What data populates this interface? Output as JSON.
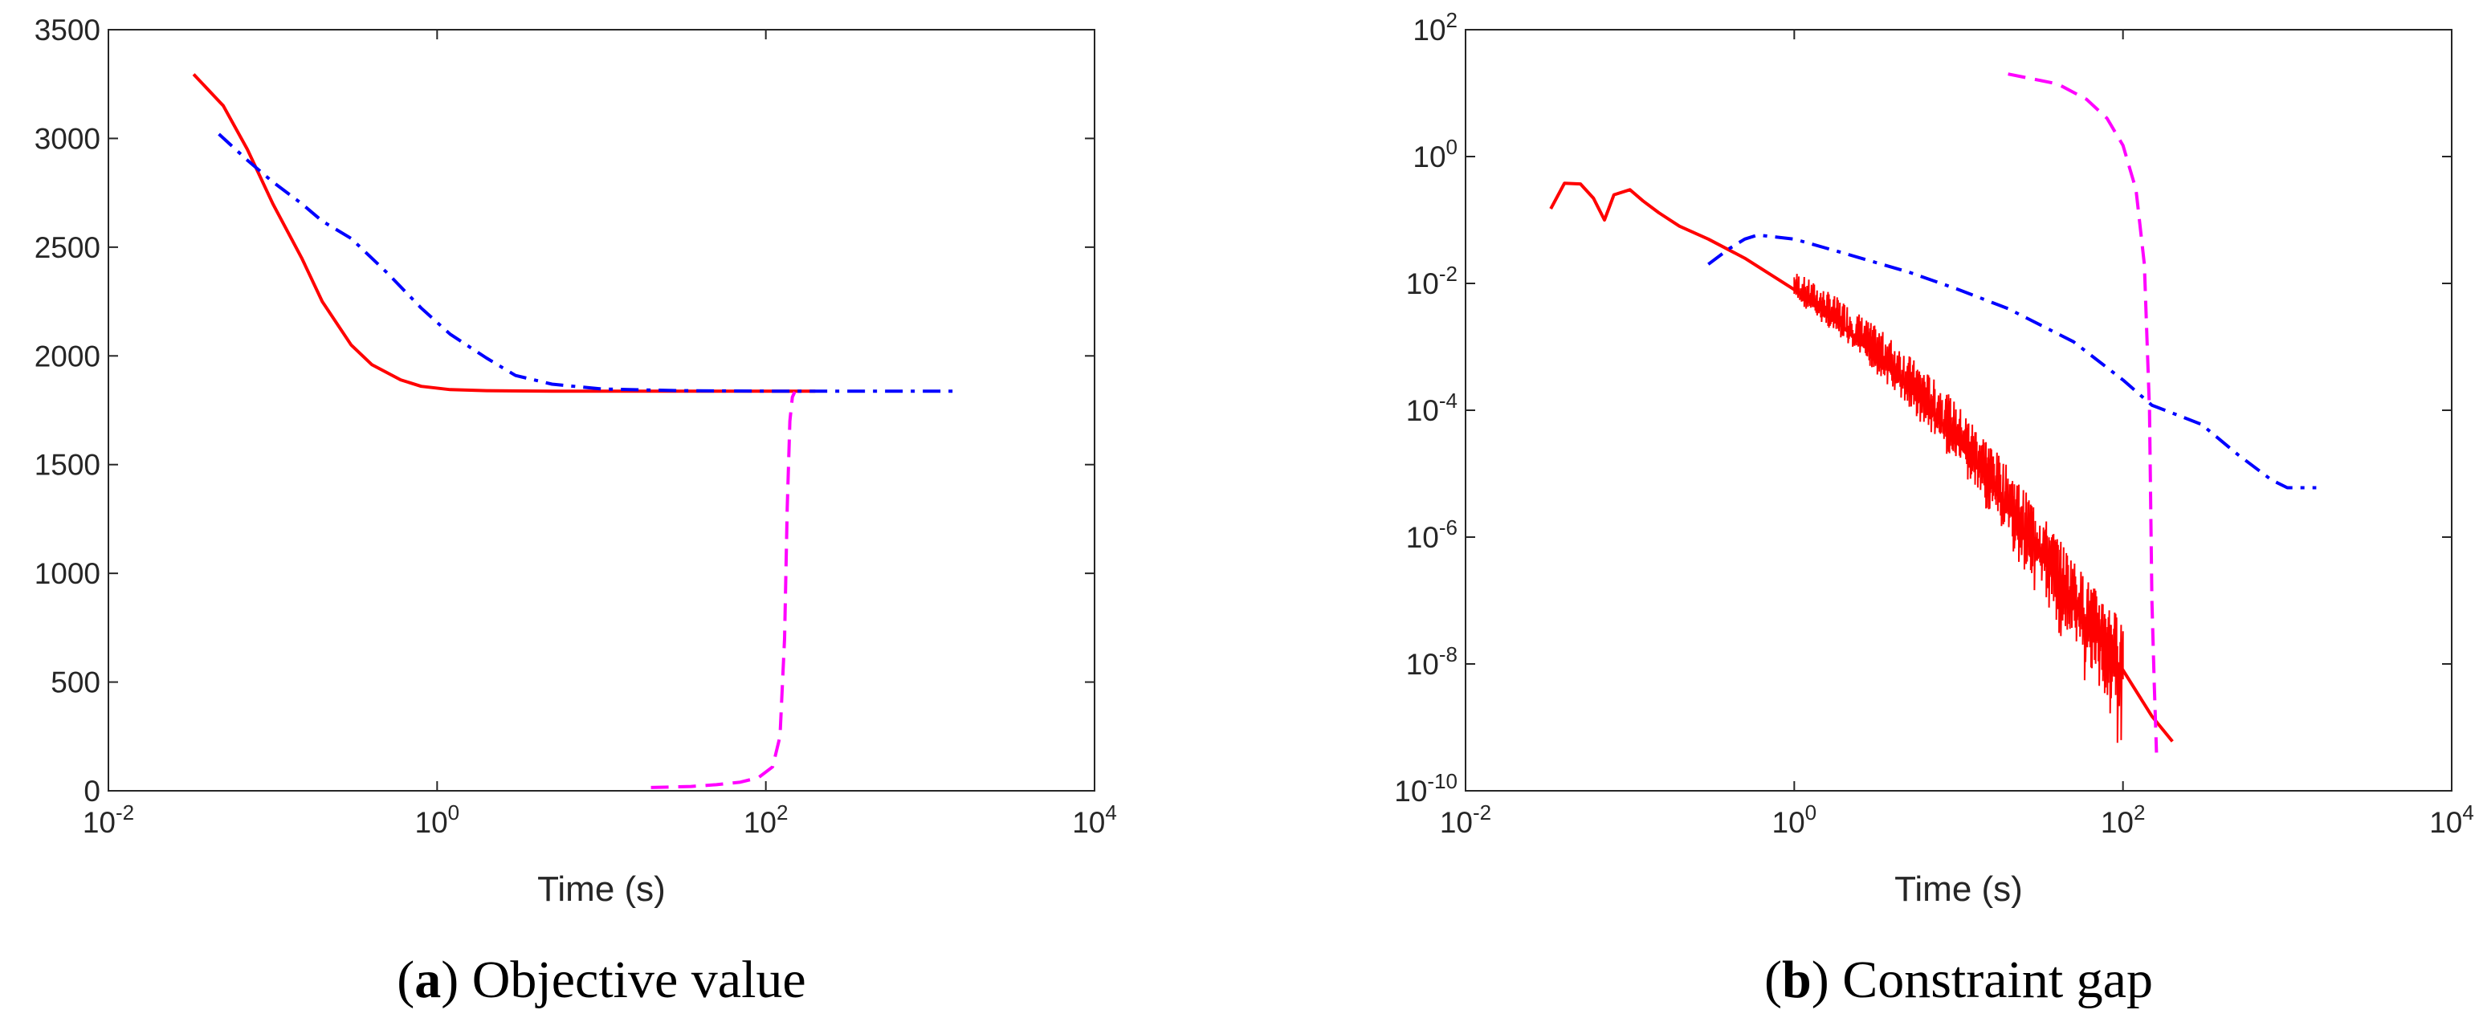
{
  "figure": {
    "panels": [
      {
        "caption": {
          "letter": "a",
          "text": "Objective value"
        },
        "chart_data": {
          "type": "line",
          "title": "",
          "xlabel": "Time (s)",
          "ylabel": "",
          "xscale": "log",
          "yscale": "linear",
          "xlim": [
            0.01,
            10000
          ],
          "ylim": [
            0,
            3500
          ],
          "grid": false,
          "x_ticks": [
            {
              "value": 0.01,
              "base": "10",
              "exp": "-2"
            },
            {
              "value": 1,
              "base": "10",
              "exp": "0"
            },
            {
              "value": 100,
              "base": "10",
              "exp": "2"
            },
            {
              "value": 10000,
              "base": "10",
              "exp": "4"
            }
          ],
          "y_ticks": [
            {
              "value": 0,
              "label": "0"
            },
            {
              "value": 500,
              "label": "500"
            },
            {
              "value": 1000,
              "label": "1000"
            },
            {
              "value": 1500,
              "label": "1500"
            },
            {
              "value": 2000,
              "label": "2000"
            },
            {
              "value": 2500,
              "label": "2500"
            },
            {
              "value": 3000,
              "label": "3000"
            },
            {
              "value": 3500,
              "label": "3500"
            }
          ],
          "series": [
            {
              "name": "red-solid",
              "color": "#ff0000",
              "style": "solid",
              "points": [
                [
                  0.033,
                  3295
                ],
                [
                  0.05,
                  3150
                ],
                [
                  0.07,
                  2950
                ],
                [
                  0.1,
                  2700
                ],
                [
                  0.15,
                  2450
                ],
                [
                  0.2,
                  2250
                ],
                [
                  0.3,
                  2050
                ],
                [
                  0.4,
                  1960
                ],
                [
                  0.6,
                  1890
                ],
                [
                  0.8,
                  1860
                ],
                [
                  1.2,
                  1845
                ],
                [
                  2,
                  1840
                ],
                [
                  5,
                  1838
                ],
                [
                  20,
                  1838
                ],
                [
                  100,
                  1838
                ],
                [
                  200,
                  1838
                ]
              ]
            },
            {
              "name": "blue-dashdot",
              "color": "#0000ff",
              "style": "dashdot",
              "points": [
                [
                  0.047,
                  3020
                ],
                [
                  0.07,
                  2900
                ],
                [
                  0.1,
                  2800
                ],
                [
                  0.15,
                  2700
                ],
                [
                  0.2,
                  2620
                ],
                [
                  0.3,
                  2540
                ],
                [
                  0.5,
                  2380
                ],
                [
                  0.8,
                  2220
                ],
                [
                  1.2,
                  2100
                ],
                [
                  2,
                  1990
                ],
                [
                  3,
                  1910
                ],
                [
                  5,
                  1870
                ],
                [
                  10,
                  1848
                ],
                [
                  30,
                  1840
                ],
                [
                  100,
                  1838
                ],
                [
                  500,
                  1838
                ],
                [
                  1500,
                  1838
                ]
              ]
            },
            {
              "name": "magenta-dashed",
              "color": "#ff00ff",
              "style": "dashed",
              "points": [
                [
                  20,
                  15
                ],
                [
                  35,
                  20
                ],
                [
                  50,
                  28
                ],
                [
                  70,
                  40
                ],
                [
                  90,
                  60
                ],
                [
                  110,
                  110
                ],
                [
                  122,
                  250
                ],
                [
                  130,
                  700
                ],
                [
                  135,
                  1300
                ],
                [
                  140,
                  1700
                ],
                [
                  145,
                  1810
                ],
                [
                  150,
                  1835
                ]
              ]
            }
          ]
        }
      },
      {
        "caption": {
          "letter": "b",
          "text": "Constraint gap"
        },
        "chart_data": {
          "type": "line",
          "title": "",
          "xlabel": "Time (s)",
          "ylabel": "",
          "xscale": "log",
          "yscale": "log",
          "xlim": [
            0.01,
            10000
          ],
          "ylim": [
            1e-10,
            100
          ],
          "grid": false,
          "x_ticks": [
            {
              "value": 0.01,
              "base": "10",
              "exp": "-2"
            },
            {
              "value": 1,
              "base": "10",
              "exp": "0"
            },
            {
              "value": 100,
              "base": "10",
              "exp": "2"
            },
            {
              "value": 10000,
              "base": "10",
              "exp": "4"
            }
          ],
          "y_ticks": [
            {
              "value": 1e-10,
              "base": "10",
              "exp": "-10"
            },
            {
              "value": 1e-08,
              "base": "10",
              "exp": "-8"
            },
            {
              "value": 1e-06,
              "base": "10",
              "exp": "-6"
            },
            {
              "value": 0.0001,
              "base": "10",
              "exp": "-4"
            },
            {
              "value": 0.01,
              "base": "10",
              "exp": "-2"
            },
            {
              "value": 1,
              "base": "10",
              "exp": "0"
            },
            {
              "value": 100,
              "base": "10",
              "exp": "2"
            }
          ],
          "series": [
            {
              "name": "red-solid",
              "color": "#ff0000",
              "style": "solid",
              "points": [
                [
                  0.033,
                  0.15
                ],
                [
                  0.04,
                  0.38
                ],
                [
                  0.05,
                  0.37
                ],
                [
                  0.06,
                  0.22
                ],
                [
                  0.07,
                  0.1
                ],
                [
                  0.08,
                  0.25
                ],
                [
                  0.1,
                  0.3
                ],
                [
                  0.12,
                  0.2
                ],
                [
                  0.15,
                  0.13
                ],
                [
                  0.2,
                  0.08
                ],
                [
                  0.3,
                  0.05
                ],
                [
                  0.5,
                  0.025
                ],
                [
                  1,
                  0.008
                ],
                [
                  2,
                  0.002
                ],
                [
                  4,
                  0.0004
                ],
                [
                  8,
                  6e-05
                ],
                [
                  15,
                  8e-06
                ],
                [
                  30,
                  6e-07
                ],
                [
                  60,
                  4e-08
                ],
                [
                  100,
                  8e-09
                ],
                [
                  150,
                  1.5e-09
                ],
                [
                  200,
                  6e-10
                ]
              ],
              "noise_band": {
                "from": 1,
                "to": 100,
                "min_factor": 0.02,
                "max_factor": 6
              }
            },
            {
              "name": "blue-dashdot",
              "color": "#0000ff",
              "style": "dashdot",
              "points": [
                [
                  0.3,
                  0.02
                ],
                [
                  0.4,
                  0.035
                ],
                [
                  0.5,
                  0.05
                ],
                [
                  0.6,
                  0.058
                ],
                [
                  1,
                  0.05
                ],
                [
                  2,
                  0.03
                ],
                [
                  5,
                  0.015
                ],
                [
                  10,
                  0.008
                ],
                [
                  20,
                  0.004
                ],
                [
                  50,
                  0.0012
                ],
                [
                  100,
                  0.0003
                ],
                [
                  150,
                  0.00012
                ],
                [
                  300,
                  6e-05
                ],
                [
                  500,
                  2e-05
                ],
                [
                  800,
                  8e-06
                ],
                [
                  1000,
                  6e-06
                ],
                [
                  1500,
                  6e-06
                ]
              ]
            },
            {
              "name": "magenta-dashed",
              "color": "#ff00ff",
              "style": "dashed",
              "points": [
                [
                  20,
                  20
                ],
                [
                  40,
                  14
                ],
                [
                  60,
                  8
                ],
                [
                  80,
                  4
                ],
                [
                  100,
                  1.5
                ],
                [
                  120,
                  0.3
                ],
                [
                  135,
                  0.02
                ],
                [
                  145,
                  0.0001
                ],
                [
                  150,
                  1e-07
                ],
                [
                  155,
                  5e-09
                ],
                [
                  160,
                  4e-10
                ]
              ]
            }
          ]
        }
      }
    ]
  }
}
